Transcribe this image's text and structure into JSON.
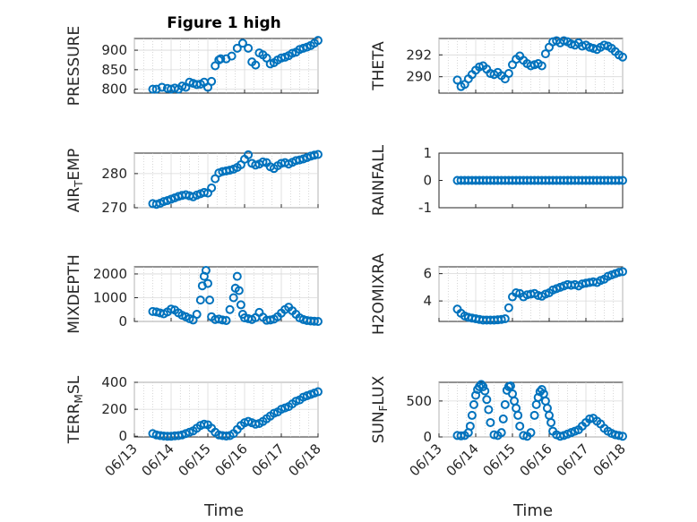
{
  "figure": {
    "title": "Figure 1 high",
    "xlabel": "Time",
    "xticklabels": [
      "06/13",
      "06/14",
      "06/15",
      "06/16",
      "06/17",
      "06/18"
    ],
    "marker_color": "#0072bd"
  },
  "chart_data": [
    {
      "type": "scatter",
      "ylabel": "PRESSURE",
      "ylim": [
        790,
        930
      ],
      "yticks": [
        800,
        850,
        900
      ],
      "xlim": [
        0,
        5
      ],
      "grid": true,
      "series": [
        {
          "x": [
            0.5,
            0.6,
            0.75,
            0.9,
            1.0,
            1.1,
            1.2,
            1.3,
            1.4,
            1.5,
            1.6,
            1.7,
            1.8,
            1.9,
            2.0,
            2.1,
            2.2,
            2.3,
            2.35,
            2.5,
            2.65,
            2.8,
            2.95,
            3.1,
            3.2,
            3.3,
            3.4,
            3.5,
            3.6,
            3.7,
            3.8,
            3.9,
            4.0,
            4.1,
            4.2,
            4.3,
            4.4,
            4.5,
            4.6,
            4.7,
            4.8,
            4.9,
            5.0
          ],
          "y": [
            800,
            800,
            805,
            802,
            800,
            803,
            800,
            808,
            805,
            818,
            815,
            812,
            813,
            818,
            805,
            820,
            860,
            875,
            878,
            878,
            885,
            905,
            918,
            905,
            870,
            862,
            893,
            888,
            880,
            865,
            868,
            875,
            880,
            882,
            886,
            892,
            895,
            902,
            905,
            908,
            912,
            918,
            925
          ]
        }
      ]
    },
    {
      "type": "scatter",
      "ylabel": "THETA",
      "ylim": [
        288.5,
        293.5
      ],
      "yticks": [
        290,
        292
      ],
      "xlim": [
        0,
        5
      ],
      "grid": true,
      "series": [
        {
          "x": [
            0.5,
            0.6,
            0.7,
            0.8,
            0.9,
            1.0,
            1.1,
            1.2,
            1.3,
            1.4,
            1.5,
            1.6,
            1.7,
            1.8,
            1.9,
            2.0,
            2.1,
            2.2,
            2.3,
            2.4,
            2.5,
            2.6,
            2.7,
            2.8,
            2.9,
            3.0,
            3.1,
            3.2,
            3.3,
            3.4,
            3.5,
            3.6,
            3.7,
            3.8,
            3.9,
            4.0,
            4.1,
            4.2,
            4.3,
            4.4,
            4.5,
            4.6,
            4.7,
            4.8,
            4.9,
            5.0
          ],
          "y": [
            289.7,
            289.1,
            289.3,
            289.8,
            290.2,
            290.6,
            290.9,
            291.0,
            290.7,
            290.3,
            290.2,
            290.4,
            290.1,
            289.8,
            290.3,
            291.1,
            291.6,
            291.9,
            291.5,
            291.2,
            291.0,
            291.1,
            291.2,
            291.0,
            292.1,
            292.7,
            293.2,
            293.3,
            293.1,
            293.3,
            293.2,
            293.0,
            292.9,
            293.1,
            292.8,
            292.9,
            292.7,
            292.6,
            292.5,
            292.7,
            292.9,
            292.8,
            292.6,
            292.3,
            292.0,
            291.8
          ]
        }
      ]
    },
    {
      "type": "scatter",
      "ylabel": "AIR_TEMP",
      "ylim": [
        270,
        286
      ],
      "yticks": [
        270,
        280
      ],
      "xlim": [
        0,
        5
      ],
      "grid": true,
      "series": [
        {
          "x": [
            0.5,
            0.6,
            0.7,
            0.8,
            0.9,
            1.0,
            1.1,
            1.2,
            1.3,
            1.4,
            1.5,
            1.6,
            1.7,
            1.8,
            1.9,
            2.0,
            2.1,
            2.2,
            2.3,
            2.4,
            2.5,
            2.6,
            2.7,
            2.8,
            2.9,
            3.0,
            3.1,
            3.2,
            3.3,
            3.4,
            3.5,
            3.6,
            3.7,
            3.8,
            3.9,
            4.0,
            4.1,
            4.2,
            4.3,
            4.4,
            4.5,
            4.6,
            4.7,
            4.8,
            4.9,
            5.0
          ],
          "y": [
            271.2,
            271.0,
            271.3,
            271.8,
            272.1,
            272.5,
            272.9,
            273.3,
            273.6,
            273.8,
            273.5,
            273.2,
            273.7,
            274.1,
            274.5,
            274.3,
            275.8,
            278.5,
            280.2,
            280.6,
            280.8,
            281.0,
            281.3,
            281.8,
            282.6,
            284.2,
            285.5,
            283.0,
            282.5,
            282.8,
            283.4,
            283.2,
            282.0,
            281.5,
            282.3,
            283.0,
            283.2,
            282.8,
            283.3,
            283.8,
            284.0,
            284.3,
            284.7,
            285.1,
            285.4,
            285.6
          ]
        }
      ]
    },
    {
      "type": "scatter",
      "ylabel": "RAINFALL",
      "ylim": [
        -1,
        1
      ],
      "yticks": [
        -1,
        0,
        1
      ],
      "xlim": [
        0,
        5
      ],
      "grid": false,
      "series": [
        {
          "x": [
            0.5,
            0.6,
            0.7,
            0.8,
            0.9,
            1.0,
            1.1,
            1.2,
            1.3,
            1.4,
            1.5,
            1.6,
            1.7,
            1.8,
            1.9,
            2.0,
            2.1,
            2.2,
            2.3,
            2.4,
            2.5,
            2.6,
            2.7,
            2.8,
            2.9,
            3.0,
            3.1,
            3.2,
            3.3,
            3.4,
            3.5,
            3.6,
            3.7,
            3.8,
            3.9,
            4.0,
            4.1,
            4.2,
            4.3,
            4.4,
            4.5,
            4.6,
            4.7,
            4.8,
            4.9,
            5.0
          ],
          "y": [
            0,
            0,
            0,
            0,
            0,
            0,
            0,
            0,
            0,
            0,
            0,
            0,
            0,
            0,
            0,
            0,
            0,
            0,
            0,
            0,
            0,
            0,
            0,
            0,
            0,
            0,
            0,
            0,
            0,
            0,
            0,
            0,
            0,
            0,
            0,
            0,
            0,
            0,
            0,
            0,
            0,
            0,
            0,
            0,
            0,
            0
          ]
        }
      ]
    },
    {
      "type": "scatter",
      "ylabel": "MIXDEPTH",
      "ylim": [
        0,
        2300
      ],
      "yticks": [
        0,
        1000,
        2000
      ],
      "xlim": [
        0,
        5
      ],
      "grid": true,
      "series": [
        {
          "x": [
            0.5,
            0.6,
            0.7,
            0.8,
            0.9,
            1.0,
            1.1,
            1.2,
            1.3,
            1.4,
            1.5,
            1.6,
            1.7,
            1.8,
            1.85,
            1.9,
            1.95,
            2.0,
            2.05,
            2.1,
            2.2,
            2.3,
            2.4,
            2.5,
            2.6,
            2.7,
            2.75,
            2.8,
            2.85,
            2.9,
            2.95,
            3.0,
            3.1,
            3.2,
            3.3,
            3.4,
            3.5,
            3.6,
            3.7,
            3.8,
            3.9,
            4.0,
            4.1,
            4.2,
            4.3,
            4.4,
            4.5,
            4.6,
            4.7,
            4.8,
            4.9,
            5.0
          ],
          "y": [
            420,
            400,
            360,
            320,
            400,
            520,
            480,
            360,
            260,
            200,
            120,
            60,
            300,
            900,
            1500,
            1900,
            2150,
            1600,
            900,
            200,
            80,
            100,
            60,
            40,
            500,
            1000,
            1400,
            1900,
            1300,
            700,
            300,
            150,
            120,
            80,
            160,
            380,
            180,
            50,
            60,
            100,
            200,
            350,
            500,
            600,
            450,
            300,
            150,
            80,
            40,
            20,
            10,
            0
          ]
        }
      ]
    },
    {
      "type": "scatter",
      "ylabel": "H2OMIXRA",
      "ylim": [
        2.5,
        6.5
      ],
      "yticks": [
        4,
        6
      ],
      "xlim": [
        0,
        5
      ],
      "grid": true,
      "series": [
        {
          "x": [
            0.5,
            0.6,
            0.7,
            0.8,
            0.9,
            1.0,
            1.1,
            1.2,
            1.3,
            1.4,
            1.5,
            1.6,
            1.7,
            1.8,
            1.9,
            2.0,
            2.1,
            2.2,
            2.3,
            2.4,
            2.5,
            2.6,
            2.7,
            2.8,
            2.9,
            3.0,
            3.1,
            3.2,
            3.3,
            3.4,
            3.5,
            3.6,
            3.7,
            3.8,
            3.9,
            4.0,
            4.1,
            4.2,
            4.3,
            4.4,
            4.5,
            4.6,
            4.7,
            4.8,
            4.9,
            5.0
          ],
          "y": [
            3.4,
            3.1,
            2.9,
            2.8,
            2.75,
            2.7,
            2.65,
            2.6,
            2.6,
            2.6,
            2.6,
            2.62,
            2.65,
            2.7,
            3.5,
            4.3,
            4.6,
            4.55,
            4.3,
            4.45,
            4.5,
            4.55,
            4.4,
            4.35,
            4.5,
            4.6,
            4.8,
            4.9,
            5.0,
            5.1,
            5.2,
            5.15,
            5.2,
            5.1,
            5.25,
            5.3,
            5.35,
            5.4,
            5.35,
            5.5,
            5.6,
            5.8,
            5.9,
            6.0,
            6.1,
            6.15
          ]
        }
      ]
    },
    {
      "type": "scatter",
      "ylabel": "TERR_MSL",
      "ylim": [
        -5,
        400
      ],
      "yticks": [
        0,
        200,
        400
      ],
      "xlim": [
        0,
        5
      ],
      "grid": true,
      "series": [
        {
          "x": [
            0.5,
            0.6,
            0.7,
            0.8,
            0.9,
            1.0,
            1.1,
            1.2,
            1.3,
            1.4,
            1.5,
            1.6,
            1.7,
            1.8,
            1.9,
            2.0,
            2.1,
            2.2,
            2.3,
            2.4,
            2.5,
            2.6,
            2.7,
            2.8,
            2.9,
            3.0,
            3.1,
            3.2,
            3.3,
            3.4,
            3.5,
            3.6,
            3.7,
            3.8,
            3.9,
            4.0,
            4.1,
            4.2,
            4.3,
            4.4,
            4.5,
            4.6,
            4.7,
            4.8,
            4.9,
            5.0
          ],
          "y": [
            20,
            10,
            5,
            2,
            0,
            0,
            3,
            5,
            10,
            20,
            30,
            40,
            60,
            80,
            90,
            85,
            60,
            30,
            10,
            5,
            2,
            5,
            20,
            50,
            80,
            100,
            110,
            100,
            90,
            95,
            110,
            130,
            150,
            170,
            180,
            200,
            210,
            220,
            240,
            260,
            270,
            290,
            300,
            310,
            320,
            330
          ]
        }
      ]
    },
    {
      "type": "scatter",
      "ylabel": "SUN_FLUX",
      "ylim": [
        0,
        760
      ],
      "yticks": [
        0,
        500
      ],
      "xlim": [
        0,
        5
      ],
      "grid": true,
      "series": [
        {
          "x": [
            0.5,
            0.6,
            0.7,
            0.8,
            0.85,
            0.9,
            0.95,
            1.0,
            1.05,
            1.1,
            1.15,
            1.2,
            1.25,
            1.3,
            1.35,
            1.4,
            1.5,
            1.6,
            1.7,
            1.75,
            1.8,
            1.85,
            1.9,
            1.95,
            2.0,
            2.05,
            2.1,
            2.15,
            2.2,
            2.3,
            2.4,
            2.5,
            2.6,
            2.65,
            2.7,
            2.75,
            2.8,
            2.85,
            2.9,
            2.95,
            3.0,
            3.05,
            3.1,
            3.2,
            3.3,
            3.4,
            3.5,
            3.6,
            3.7,
            3.8,
            3.9,
            4.0,
            4.1,
            4.2,
            4.3,
            4.4,
            4.5,
            4.6,
            4.7,
            4.8,
            4.9,
            5.0
          ],
          "y": [
            20,
            15,
            20,
            60,
            150,
            300,
            450,
            580,
            660,
            700,
            730,
            700,
            640,
            520,
            380,
            200,
            30,
            20,
            60,
            250,
            450,
            650,
            700,
            710,
            600,
            500,
            400,
            300,
            150,
            20,
            10,
            60,
            300,
            450,
            550,
            630,
            660,
            600,
            500,
            400,
            300,
            200,
            80,
            30,
            10,
            20,
            40,
            60,
            80,
            100,
            150,
            200,
            250,
            260,
            220,
            180,
            120,
            80,
            50,
            30,
            20,
            10
          ]
        }
      ]
    }
  ]
}
